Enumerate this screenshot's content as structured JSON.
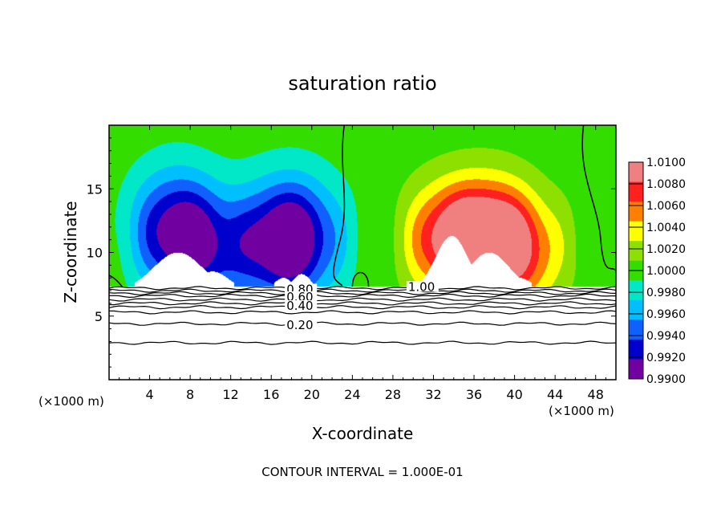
{
  "chart_data": {
    "type": "heatmap",
    "title": "saturation ratio",
    "xlabel": "X-coordinate",
    "ylabel": "Z-coordinate",
    "x_unit_left": "(×1000 m)",
    "x_unit_right": "(×1000 m)",
    "xlim": [
      0,
      50
    ],
    "ylim": [
      0,
      20
    ],
    "x_ticks": [
      4,
      8,
      12,
      16,
      20,
      24,
      28,
      32,
      36,
      40,
      44,
      48
    ],
    "y_ticks": [
      5,
      10,
      15
    ],
    "footer": "CONTOUR INTERVAL = 1.000E-01",
    "colorbar": {
      "labels": [
        "1.0100",
        "1.0080",
        "1.0060",
        "1.0040",
        "1.0020",
        "1.0000",
        "0.9980",
        "0.9960",
        "0.9940",
        "0.9920",
        "0.9900"
      ],
      "colors": [
        "#f08080",
        "#ff2020",
        "#ff8000",
        "#ffff00",
        "#8ee000",
        "#33dd00",
        "#00e8c8",
        "#00bfff",
        "#1060ff",
        "#0000cd",
        "#7000a0"
      ]
    },
    "contour_labels": [
      {
        "text": "0.80",
        "x": 17.5,
        "y": 7.1
      },
      {
        "text": "0.60",
        "x": 17.5,
        "y": 6.5
      },
      {
        "text": "0.40",
        "x": 17.5,
        "y": 5.8
      },
      {
        "text": "0.20",
        "x": 17.5,
        "y": 4.3
      },
      {
        "text": "1.00",
        "x": 29.5,
        "y": 7.3
      }
    ],
    "contour_levels_below": [
      7.2,
      7.0,
      6.8,
      6.6,
      6.3,
      6.0,
      5.7,
      5.3,
      4.4,
      2.9
    ],
    "terrain_top": 7.3,
    "dry_anomaly": [
      {
        "x": 6.5,
        "z": 11.8,
        "amp": 1.0
      },
      {
        "x": 10.0,
        "z": 10.0,
        "amp": 0.55
      },
      {
        "x": 16.5,
        "z": 10.8,
        "amp": 0.75
      },
      {
        "x": 18.8,
        "z": 11.2,
        "amp": 0.75
      }
    ],
    "moist_anomaly": [
      {
        "x": 33.5,
        "z": 11.0,
        "amp": 1.0
      },
      {
        "x": 37.5,
        "z": 11.5,
        "amp": 0.95
      },
      {
        "x": 40.5,
        "z": 10.0,
        "amp": 0.75
      }
    ]
  }
}
